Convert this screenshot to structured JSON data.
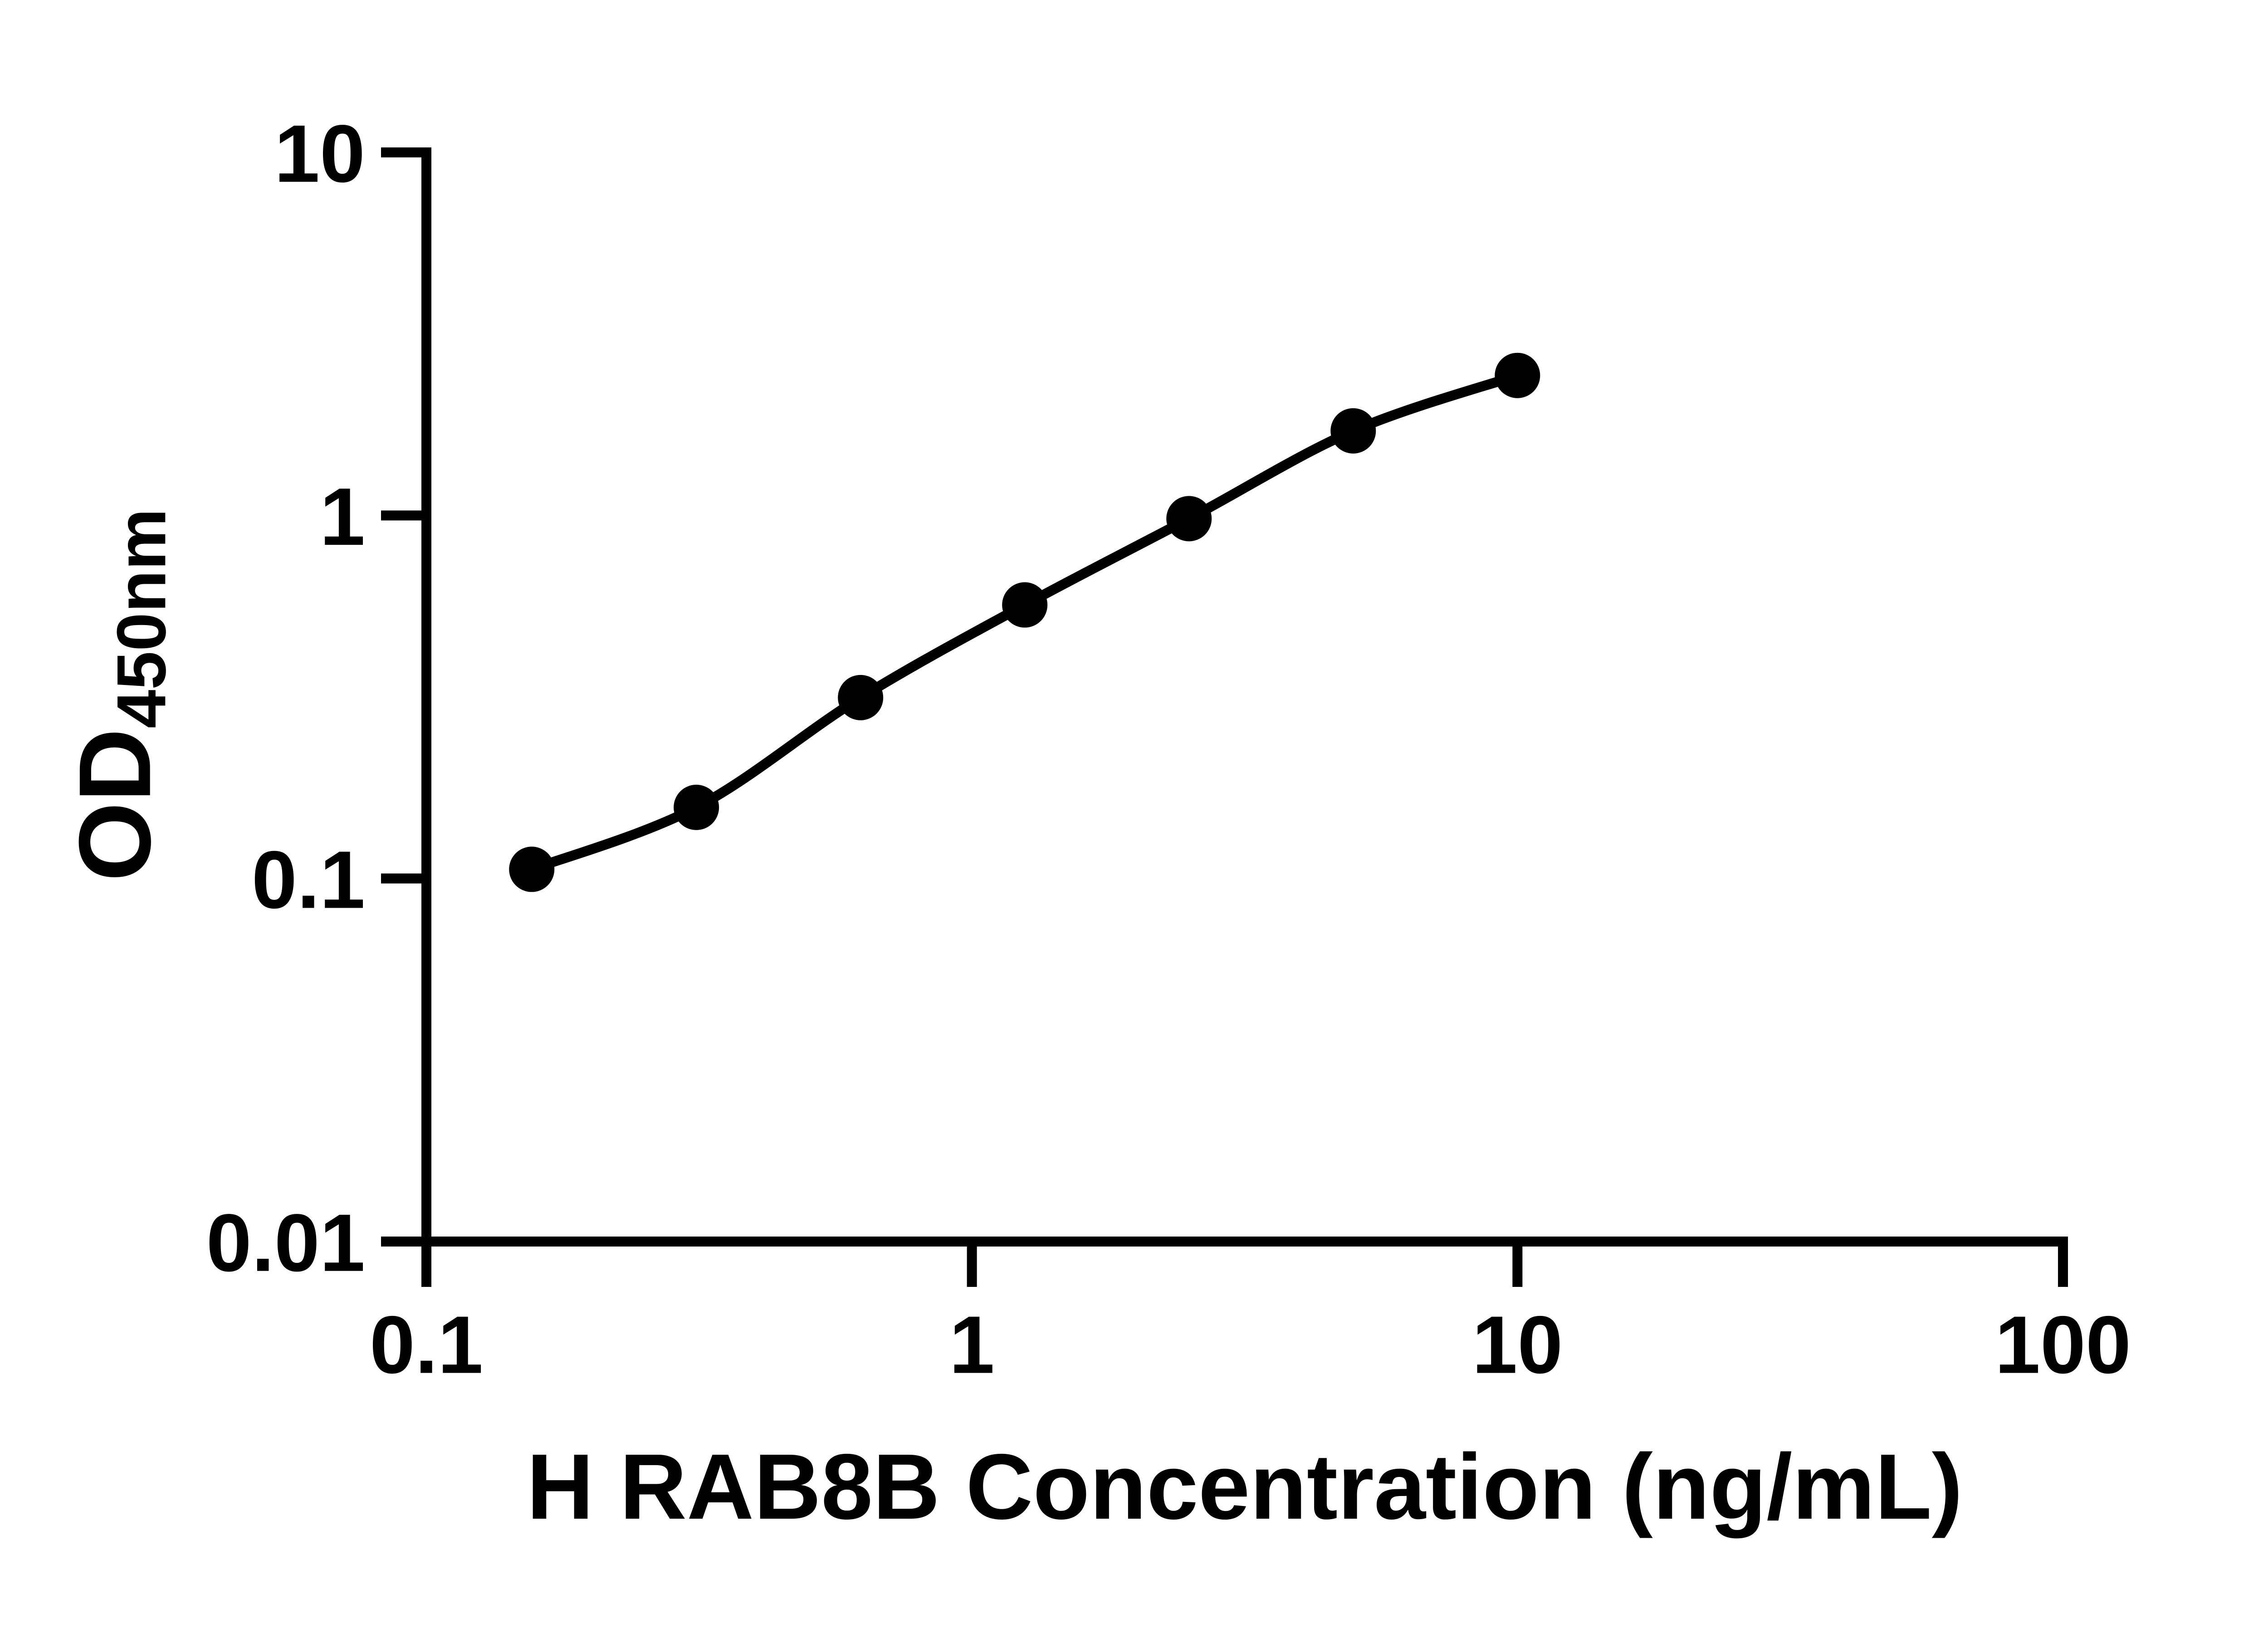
{
  "colors": {
    "background": "#ffffff",
    "axis": "#000000",
    "text": "#000000",
    "series": "#000000"
  },
  "chart_data": {
    "type": "line",
    "title": "",
    "xlabel": "H RAB8B Concentration (ng/mL)",
    "ylabel_main": "OD",
    "ylabel_sub": "450nm",
    "x_scale": "log",
    "y_scale": "log",
    "xlim": [
      0.1,
      100
    ],
    "ylim": [
      0.01,
      10
    ],
    "grid": false,
    "legend": null,
    "x_ticks": [
      {
        "value": 0.1,
        "label": "0.1"
      },
      {
        "value": 1,
        "label": "1"
      },
      {
        "value": 10,
        "label": "10"
      },
      {
        "value": 100,
        "label": "100"
      }
    ],
    "y_ticks": [
      {
        "value": 10,
        "label": "10"
      },
      {
        "value": 1,
        "label": "1"
      },
      {
        "value": 0.1,
        "label": "0.1"
      },
      {
        "value": 0.01,
        "label": "0.01"
      }
    ],
    "series": [
      {
        "marker": "circle",
        "color": "#000000",
        "points": [
          {
            "x": 0.156,
            "y": 0.106
          },
          {
            "x": 0.3125,
            "y": 0.157
          },
          {
            "x": 0.625,
            "y": 0.315
          },
          {
            "x": 1.25,
            "y": 0.567
          },
          {
            "x": 2.5,
            "y": 0.98
          },
          {
            "x": 5,
            "y": 1.71
          },
          {
            "x": 10,
            "y": 2.43
          }
        ]
      }
    ]
  }
}
